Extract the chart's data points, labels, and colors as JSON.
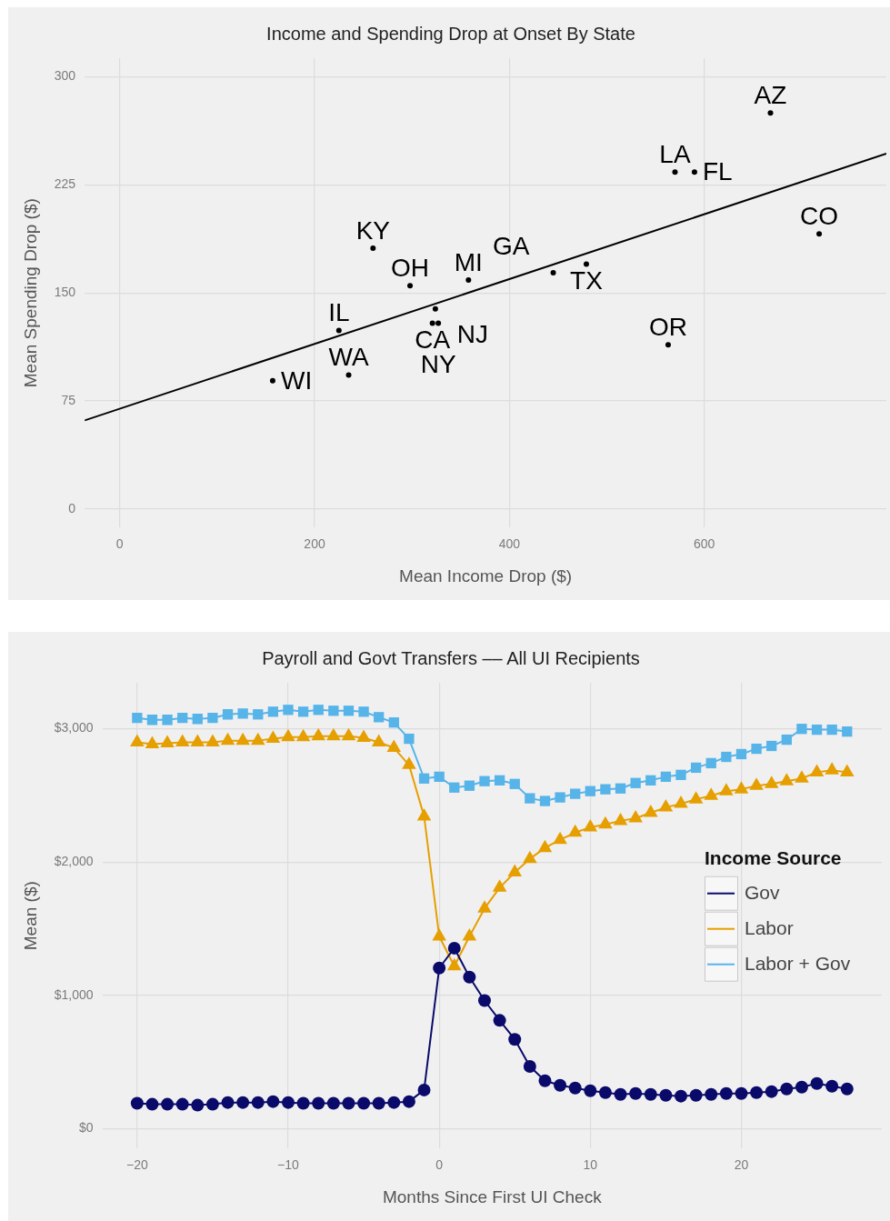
{
  "chart_data": [
    {
      "type": "scatter",
      "title": "Income and Spending Drop at Onset By State",
      "xlabel": "Mean Income Drop ($)",
      "ylabel": "Mean Spending Drop ($)",
      "xlim": [
        -36,
        787
      ],
      "ylim": [
        -13,
        313
      ],
      "xticks": [
        0,
        200,
        400,
        600
      ],
      "yticks": [
        0,
        75,
        150,
        225,
        300
      ],
      "grid": true,
      "series": [
        {
          "color": "#000000",
          "marker": "circle",
          "x": [
            668,
            570,
            590,
            718,
            479,
            445,
            358,
            260,
            298,
            324,
            321,
            327,
            225,
            235,
            157,
            563
          ],
          "values": [
            275,
            234,
            234,
            191,
            170,
            164,
            159,
            181,
            155,
            139,
            129,
            129,
            124,
            93,
            89,
            114
          ],
          "value_labels": [
            "AZ",
            "LA",
            "FL",
            "CO",
            "TX",
            "GA",
            "MI",
            "KY",
            "OH",
            "NJ",
            "CA",
            "NY",
            "IL",
            "WA",
            "WI",
            "OR"
          ]
        },
        {
          "type": "line",
          "color": "#000000",
          "marker": "none",
          "x": [
            -36,
            787
          ],
          "values": [
            61.5,
            246.7
          ]
        }
      ]
    },
    {
      "type": "line",
      "title": "Payroll and Govt Transfers –– All UI Recipients",
      "xlabel": "Months Since First UI Check",
      "ylabel": "Mean ($)",
      "legend_title": "Income Source",
      "legend": "right",
      "grid": true,
      "xlim": [
        -22.3,
        29.3
      ],
      "ylim": [
        -150,
        3345
      ],
      "xticks": [
        {
          "value": -20,
          "label": "−20"
        },
        {
          "value": -10,
          "label": "−10"
        },
        0,
        10,
        20
      ],
      "yticks": [
        {
          "value": 0,
          "label": "$0"
        },
        {
          "value": 1000,
          "label": "$1,000"
        },
        {
          "value": 2000,
          "label": "$2,000"
        },
        {
          "value": 3000,
          "label": "$3,000"
        }
      ],
      "x": [
        -20,
        -19,
        -18,
        -17,
        -16,
        -15,
        -14,
        -13,
        -12,
        -11,
        -10,
        -9,
        -8,
        -7,
        -6,
        -5,
        -4,
        -3,
        -2,
        -1,
        0,
        1,
        2,
        3,
        4,
        5,
        6,
        7,
        8,
        9,
        10,
        11,
        12,
        13,
        14,
        15,
        16,
        17,
        18,
        19,
        20,
        21,
        22,
        23,
        24,
        25,
        26,
        27
      ],
      "series": [
        {
          "name": "Gov",
          "color": "#0a0a6b",
          "marker": "circle",
          "values": [
            190,
            183,
            183,
            183,
            176,
            183,
            196,
            196,
            196,
            203,
            196,
            190,
            190,
            190,
            190,
            190,
            190,
            196,
            203,
            290,
            1205,
            1354,
            1137,
            961,
            812,
            670,
            467,
            359,
            325,
            305,
            284,
            271,
            257,
            264,
            257,
            250,
            244,
            250,
            257,
            264,
            264,
            271,
            278,
            298,
            311,
            339,
            318,
            298
          ]
        },
        {
          "name": "Labor",
          "color": "#e69f00",
          "marker": "triangle",
          "values": [
            2898,
            2884,
            2891,
            2898,
            2898,
            2898,
            2911,
            2911,
            2911,
            2925,
            2938,
            2938,
            2945,
            2945,
            2945,
            2932,
            2898,
            2857,
            2729,
            2343,
            1442,
            1219,
            1442,
            1652,
            1808,
            1923,
            2024,
            2106,
            2167,
            2221,
            2261,
            2282,
            2309,
            2329,
            2370,
            2410,
            2437,
            2471,
            2498,
            2532,
            2546,
            2573,
            2586,
            2607,
            2627,
            2674,
            2688,
            2674
          ]
        },
        {
          "name": "Labor + Gov",
          "color": "#56b4e9",
          "marker": "square",
          "values": [
            3081,
            3067,
            3067,
            3081,
            3074,
            3081,
            3108,
            3114,
            3108,
            3128,
            3142,
            3128,
            3142,
            3135,
            3135,
            3128,
            3087,
            3047,
            2925,
            2627,
            2640,
            2559,
            2573,
            2607,
            2613,
            2586,
            2478,
            2458,
            2485,
            2512,
            2532,
            2546,
            2552,
            2593,
            2613,
            2640,
            2654,
            2708,
            2742,
            2789,
            2810,
            2850,
            2871,
            2918,
            2999,
            2993,
            2993,
            2979
          ]
        }
      ]
    }
  ]
}
